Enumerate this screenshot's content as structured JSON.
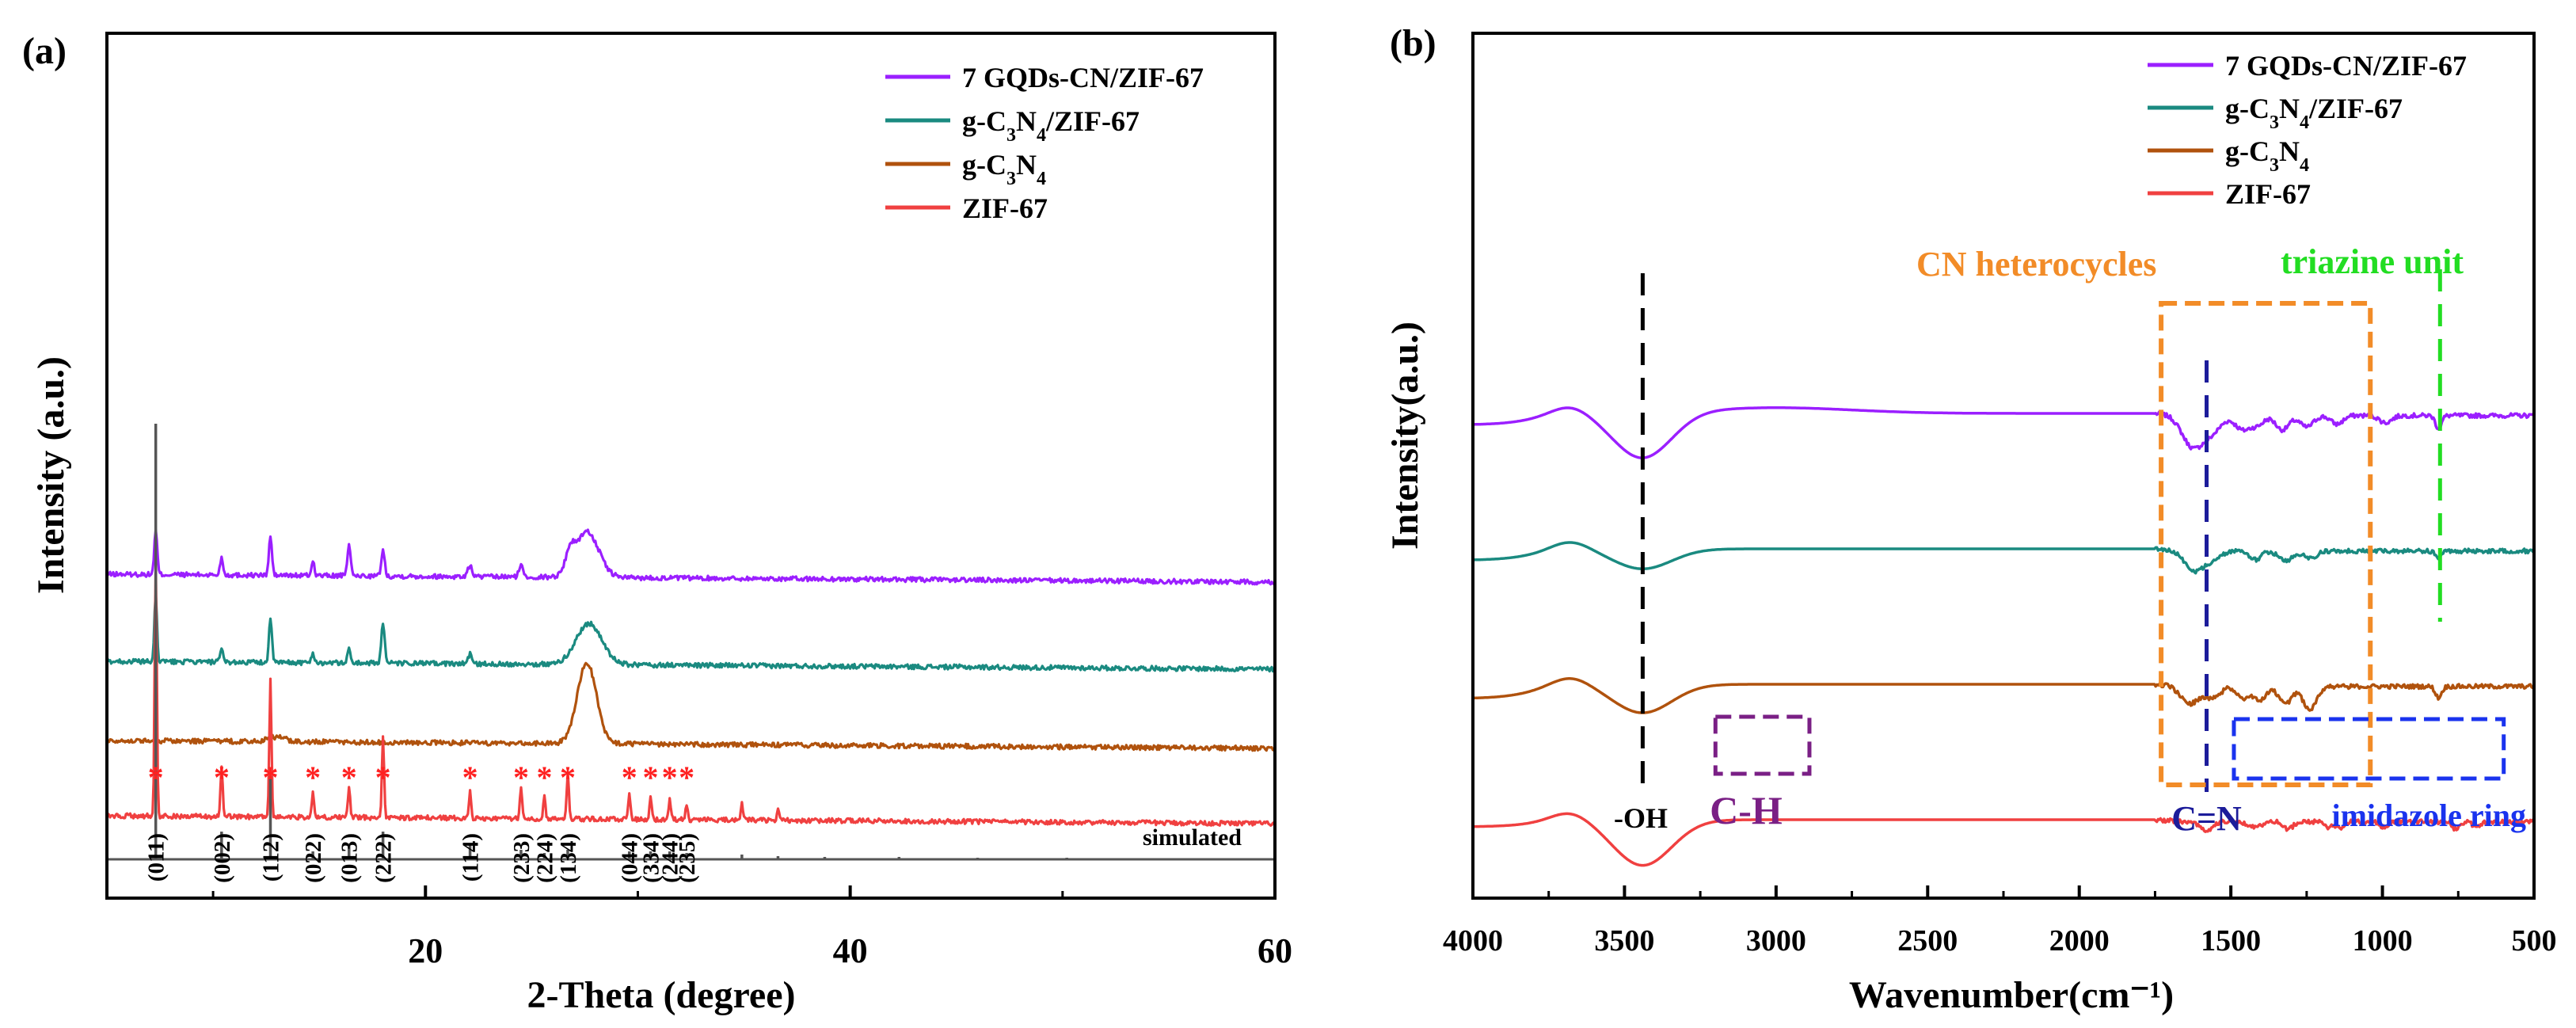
{
  "chart_data": [
    {
      "panel": "(a)",
      "type": "line",
      "xlabel": "2-Theta (degree)",
      "ylabel": "Intensity (a.u.)",
      "xlim": [
        5,
        60
      ],
      "x_ticks": [
        "20",
        "40",
        "60"
      ],
      "x_tick_values": [
        20,
        40,
        60
      ],
      "legend_position": "top-right",
      "series": [
        {
          "name": "7 GQDs-CN/ZIF-67",
          "color": "#9b1fff",
          "baseline": 3.2,
          "peaks": [
            [
              7.3,
              0.55,
              0.07
            ],
            [
              10.4,
              0.22,
              0.07
            ],
            [
              12.7,
              0.5,
              0.07
            ],
            [
              14.7,
              0.18,
              0.07
            ],
            [
              16.4,
              0.42,
              0.07
            ],
            [
              18.0,
              0.32,
              0.08
            ],
            [
              22.1,
              0.14,
              0.1
            ],
            [
              24.5,
              0.14,
              0.1
            ],
            [
              26.8,
              0.22,
              0.2
            ],
            [
              27.6,
              0.58,
              0.55
            ]
          ]
        },
        {
          "name": "g-C3N4/ZIF-67",
          "color": "#1a8a80",
          "baseline": 2.1,
          "peaks": [
            [
              7.3,
              0.85,
              0.06
            ],
            [
              10.4,
              0.15,
              0.07
            ],
            [
              12.7,
              0.55,
              0.07
            ],
            [
              14.7,
              0.12,
              0.07
            ],
            [
              16.4,
              0.18,
              0.07
            ],
            [
              18.0,
              0.5,
              0.08
            ],
            [
              22.1,
              0.12,
              0.1
            ],
            [
              27.7,
              0.52,
              0.6
            ]
          ]
        },
        {
          "name": "g-C3N4",
          "color": "#b0520d",
          "baseline": 1.1,
          "peaks": [
            [
              13.0,
              0.06,
              0.4
            ],
            [
              27.6,
              1.02,
              0.45
            ]
          ]
        },
        {
          "name": "ZIF-67",
          "color": "#f04040",
          "baseline": 0.15,
          "peaks": [
            [
              7.3,
              3.2,
              0.05
            ],
            [
              10.4,
              0.62,
              0.05
            ],
            [
              12.7,
              1.75,
              0.05
            ],
            [
              14.7,
              0.3,
              0.05
            ],
            [
              16.4,
              0.4,
              0.05
            ],
            [
              18.0,
              1.05,
              0.05
            ],
            [
              22.1,
              0.38,
              0.05
            ],
            [
              24.5,
              0.42,
              0.05
            ],
            [
              25.6,
              0.3,
              0.05
            ],
            [
              26.7,
              0.6,
              0.05
            ],
            [
              29.6,
              0.35,
              0.05
            ],
            [
              30.6,
              0.32,
              0.05
            ],
            [
              31.5,
              0.25,
              0.05
            ],
            [
              32.3,
              0.2,
              0.05
            ],
            [
              34.9,
              0.22,
              0.05
            ],
            [
              36.6,
              0.15,
              0.05
            ]
          ]
        }
      ],
      "simulated": {
        "label": "simulated",
        "color": "#555555",
        "sticks": [
          [
            7.3,
            5.5
          ],
          [
            10.4,
            0.35
          ],
          [
            12.7,
            1.05
          ],
          [
            14.7,
            0.1
          ],
          [
            16.4,
            0.2
          ],
          [
            18.0,
            0.35
          ],
          [
            22.1,
            0.2
          ],
          [
            24.5,
            0.12
          ],
          [
            25.6,
            0.08
          ],
          [
            26.7,
            0.12
          ],
          [
            29.6,
            0.1
          ],
          [
            30.6,
            0.1
          ],
          [
            31.5,
            0.1
          ],
          [
            32.3,
            0.08
          ],
          [
            34.9,
            0.06
          ],
          [
            36.6,
            0.04
          ],
          [
            38.8,
            0.03
          ],
          [
            42.3,
            0.03
          ],
          [
            46.0,
            0.02
          ],
          [
            50.2,
            0.02
          ]
        ]
      },
      "star_positions": [
        7.3,
        10.4,
        12.7,
        14.7,
        16.4,
        18.0,
        22.1,
        24.5,
        25.6,
        26.7,
        29.6,
        30.6,
        31.5,
        32.3
      ],
      "miller_indices": [
        {
          "x": 7.3,
          "label": "(011)"
        },
        {
          "x": 10.4,
          "label": "(002)"
        },
        {
          "x": 12.7,
          "label": "(112)"
        },
        {
          "x": 14.7,
          "label": "(022)"
        },
        {
          "x": 16.4,
          "label": "(013)"
        },
        {
          "x": 18.0,
          "label": "(222)"
        },
        {
          "x": 22.1,
          "label": "(114)"
        },
        {
          "x": 24.5,
          "label": "(233)"
        },
        {
          "x": 25.6,
          "label": "(224)"
        },
        {
          "x": 26.7,
          "label": "(134)"
        },
        {
          "x": 29.6,
          "label": "(044)"
        },
        {
          "x": 30.6,
          "label": "(334)"
        },
        {
          "x": 31.5,
          "label": "(244)"
        },
        {
          "x": 32.3,
          "label": "(235)"
        }
      ]
    },
    {
      "panel": "(b)",
      "type": "line",
      "xlabel": "Wavenumber(cm⁻¹)",
      "ylabel": "Intensity(a.u.)",
      "xlim": [
        4000,
        500
      ],
      "x_ticks": [
        "4000",
        "3500",
        "3000",
        "2500",
        "2000",
        "1500",
        "1000",
        "500"
      ],
      "x_tick_values": [
        4000,
        3500,
        3000,
        2500,
        2000,
        1500,
        1000,
        500
      ],
      "legend_position": "top-right",
      "series": [
        {
          "name": "7 GQDs-CN/ZIF-67",
          "color": "#9b1fff",
          "baseline": 3.45,
          "start": -0.08,
          "oh_depth": 0.32,
          "bump": 0.04,
          "bands": [
            [
              1625,
              0.22,
              35
            ],
            [
              1560,
              0.1,
              30
            ],
            [
              1460,
              0.1,
              25
            ],
            [
              1410,
              0.06,
              20
            ],
            [
              1330,
              0.1,
              22
            ],
            [
              1250,
              0.08,
              22
            ],
            [
              1150,
              0.06,
              20
            ],
            [
              990,
              0.05,
              20
            ],
            [
              815,
              0.09,
              10
            ]
          ]
        },
        {
          "name": "g-C3N4/ZIF-67",
          "color": "#1a8a80",
          "baseline": 2.5,
          "start": -0.08,
          "oh_depth": 0.14,
          "bump": 0.0,
          "bands": [
            [
              1620,
              0.14,
              30
            ],
            [
              1560,
              0.06,
              25
            ],
            [
              1420,
              0.06,
              20
            ],
            [
              1320,
              0.07,
              22
            ],
            [
              1240,
              0.05,
              22
            ],
            [
              815,
              0.05,
              10
            ]
          ]
        },
        {
          "name": "g-C3N4",
          "color": "#b0520d",
          "baseline": 1.55,
          "start": -0.1,
          "oh_depth": 0.2,
          "bump": 0.0,
          "bands": [
            [
              1635,
              0.12,
              30
            ],
            [
              1560,
              0.08,
              25
            ],
            [
              1460,
              0.08,
              20
            ],
            [
              1405,
              0.1,
              20
            ],
            [
              1320,
              0.12,
              22
            ],
            [
              1240,
              0.16,
              22
            ],
            [
              815,
              0.08,
              10
            ]
          ]
        },
        {
          "name": "ZIF-67",
          "color": "#f04040",
          "baseline": 0.6,
          "start": -0.05,
          "oh_depth": 0.32,
          "bump": 0.0,
          "bands": [
            [
              1580,
              0.06,
              20
            ],
            [
              1420,
              0.04,
              20
            ],
            [
              1310,
              0.05,
              15
            ],
            [
              1180,
              0.04,
              12
            ],
            [
              1140,
              0.05,
              12
            ],
            [
              995,
              0.04,
              12
            ],
            [
              760,
              0.05,
              12
            ],
            [
              690,
              0.04,
              12
            ]
          ]
        }
      ],
      "annotations": [
        {
          "text": "-OH",
          "color": "#000000"
        },
        {
          "text": "C-H",
          "color": "#7a1f85"
        },
        {
          "text": "C=N",
          "color": "#1c1c9a"
        },
        {
          "text": "imidazole ring",
          "color": "#1a33ee"
        },
        {
          "text": "CN heterocycles",
          "color": "#f28c28"
        },
        {
          "text": "triazine unit",
          "color": "#22dd22"
        }
      ],
      "marker_lines": {
        "oh_cm": 3440,
        "cn_cm": 1580,
        "triazine_cm": 810
      },
      "boxes": {
        "ch": [
          3200,
          2890
        ],
        "cn_heterocycles": [
          1730,
          1040
        ],
        "imidazole": [
          1490,
          600
        ]
      }
    }
  ]
}
